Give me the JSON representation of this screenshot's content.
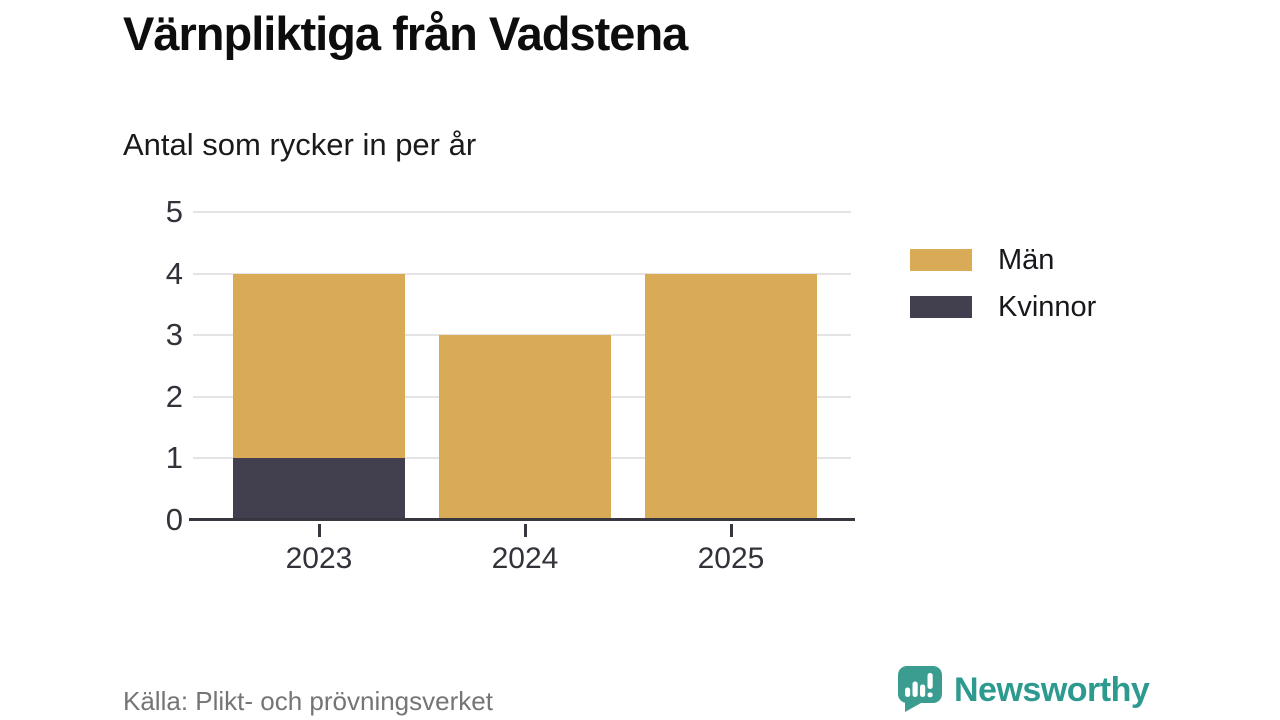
{
  "chart_data": {
    "type": "bar",
    "stacked": true,
    "title": "Värnpliktiga från Vadstena",
    "subtitle": "Antal som rycker in per år",
    "categories": [
      "2023",
      "2024",
      "2025"
    ],
    "series": [
      {
        "name": "Kvinnor",
        "color": "#42404e",
        "values": [
          1,
          0,
          0
        ]
      },
      {
        "name": "Män",
        "color": "#d9ab56",
        "values": [
          3,
          3,
          4
        ]
      }
    ],
    "totals": [
      4,
      3,
      4
    ],
    "ylim": [
      0,
      5
    ],
    "yticks": [
      0,
      1,
      2,
      3,
      4,
      5
    ],
    "grid": true,
    "legend": {
      "position": "right",
      "entries": [
        {
          "label": "Män",
          "color": "#d9ab56"
        },
        {
          "label": "Kvinnor",
          "color": "#42404e"
        }
      ]
    }
  },
  "footer": {
    "source": "Källa: Plikt- och prövningsverket",
    "brand": "Newsworthy",
    "brand_color": "#2d9a8f",
    "icon_color": "#3a9d90"
  }
}
